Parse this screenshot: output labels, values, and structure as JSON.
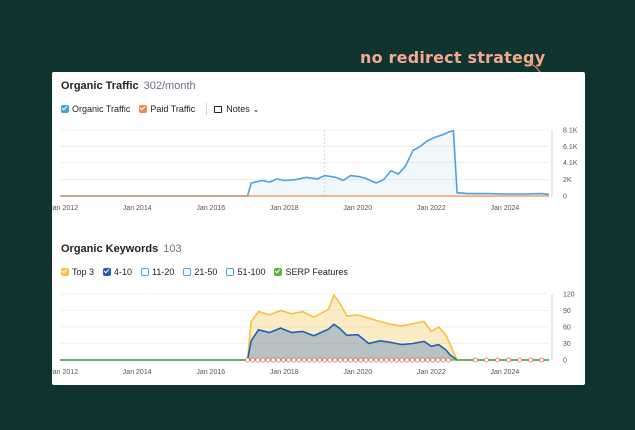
{
  "annotation": {
    "text": "no redirect strategy"
  },
  "traffic": {
    "title": "Organic Traffic",
    "value": "302/month",
    "legend": [
      {
        "label": "Organic Traffic",
        "color": "#4aa3df",
        "checked": true
      },
      {
        "label": "Paid Traffic",
        "color": "#f08a4b",
        "checked": true
      }
    ],
    "notes_label": "Notes"
  },
  "keywords": {
    "title": "Organic Keywords",
    "value": "103",
    "legend": [
      {
        "label": "Top 3",
        "color": "#f6c042",
        "checked": true
      },
      {
        "label": "4-10",
        "color": "#1f5fb8",
        "checked": true
      },
      {
        "label": "11-20",
        "color": "#4aa3df",
        "checked": false
      },
      {
        "label": "21-50",
        "color": "#4aa3df",
        "checked": false
      },
      {
        "label": "51-100",
        "color": "#4aa3df",
        "checked": false
      },
      {
        "label": "SERP Features",
        "color": "#55b83c",
        "checked": true
      }
    ]
  },
  "chart_data": [
    {
      "type": "area",
      "title": "Organic Traffic",
      "ylim": [
        0,
        8100
      ],
      "yticks": [
        "8.1K",
        "6.1K",
        "4.1K",
        "2K",
        "0"
      ],
      "ytick_values": [
        8100,
        6100,
        4100,
        2000,
        0
      ],
      "xticks": [
        "Jan 2012",
        "Jan 2014",
        "Jan 2016",
        "Jan 2018",
        "Jan 2020",
        "Jan 2022",
        "Jan 2024"
      ],
      "xtick_values": [
        2012,
        2014,
        2016,
        2018,
        2020,
        2022,
        2024
      ],
      "xlim": [
        2011.9,
        2025.2
      ],
      "series": [
        {
          "name": "Organic Traffic",
          "color": "#4aa3df",
          "x": [
            2011.9,
            2017.0,
            2017.1,
            2017.4,
            2017.6,
            2017.8,
            2018.0,
            2018.3,
            2018.6,
            2018.9,
            2019.1,
            2019.4,
            2019.6,
            2019.8,
            2020.0,
            2020.2,
            2020.5,
            2020.7,
            2020.9,
            2021.1,
            2021.3,
            2021.5,
            2021.7,
            2021.9,
            2022.1,
            2022.3,
            2022.5,
            2022.6,
            2022.7,
            2023.0,
            2023.5,
            2024.0,
            2024.5,
            2025.0,
            2025.2
          ],
          "y": [
            0,
            0,
            1600,
            1900,
            1700,
            2100,
            1900,
            2000,
            2300,
            2100,
            2500,
            2300,
            1900,
            2500,
            2400,
            2200,
            1600,
            2000,
            3100,
            2700,
            3700,
            5600,
            6100,
            6800,
            7200,
            7500,
            7900,
            8000,
            400,
            300,
            300,
            250,
            250,
            300,
            200
          ]
        },
        {
          "name": "Paid Traffic",
          "color": "#f08a4b",
          "x": [
            2011.9,
            2025.2
          ],
          "y": [
            0,
            0
          ]
        }
      ]
    },
    {
      "type": "area",
      "title": "Organic Keywords",
      "ylim": [
        0,
        120
      ],
      "yticks": [
        "120",
        "90",
        "60",
        "30",
        "0"
      ],
      "ytick_values": [
        120,
        90,
        60,
        30,
        0
      ],
      "xticks": [
        "Jan 2012",
        "Jan 2014",
        "Jan 2016",
        "Jan 2018",
        "Jan 2020",
        "Jan 2022",
        "Jan 2024"
      ],
      "xtick_values": [
        2012,
        2014,
        2016,
        2018,
        2020,
        2022,
        2024
      ],
      "xlim": [
        2011.9,
        2025.2
      ],
      "series": [
        {
          "name": "Top 3",
          "color": "#f6c042",
          "x": [
            2011.9,
            2017.0,
            2017.1,
            2017.3,
            2017.6,
            2017.9,
            2018.2,
            2018.5,
            2018.8,
            2019.0,
            2019.2,
            2019.35,
            2019.5,
            2019.7,
            2020.0,
            2020.3,
            2020.6,
            2020.9,
            2021.2,
            2021.5,
            2021.8,
            2022.0,
            2022.2,
            2022.4,
            2022.5,
            2022.7,
            2025.2
          ],
          "y": [
            0,
            0,
            70,
            88,
            82,
            90,
            84,
            88,
            78,
            85,
            92,
            118,
            105,
            80,
            82,
            76,
            70,
            65,
            62,
            66,
            70,
            52,
            60,
            45,
            30,
            0,
            0
          ]
        },
        {
          "name": "4-10",
          "color": "#1f5fb8",
          "x": [
            2011.9,
            2017.0,
            2017.1,
            2017.3,
            2017.6,
            2017.9,
            2018.2,
            2018.5,
            2018.8,
            2019.0,
            2019.2,
            2019.35,
            2019.5,
            2019.7,
            2020.0,
            2020.3,
            2020.6,
            2020.9,
            2021.2,
            2021.5,
            2021.8,
            2022.0,
            2022.2,
            2022.4,
            2022.5,
            2022.7,
            2025.2
          ],
          "y": [
            0,
            0,
            35,
            55,
            50,
            58,
            50,
            52,
            44,
            50,
            56,
            65,
            58,
            45,
            46,
            30,
            35,
            32,
            28,
            30,
            34,
            25,
            28,
            18,
            10,
            0,
            0
          ]
        },
        {
          "name": "SERP Features",
          "color": "#55b83c",
          "x": [
            2011.9,
            2025.2
          ],
          "y": [
            0,
            0
          ]
        }
      ],
      "serp_markers_note": "G"
    }
  ]
}
